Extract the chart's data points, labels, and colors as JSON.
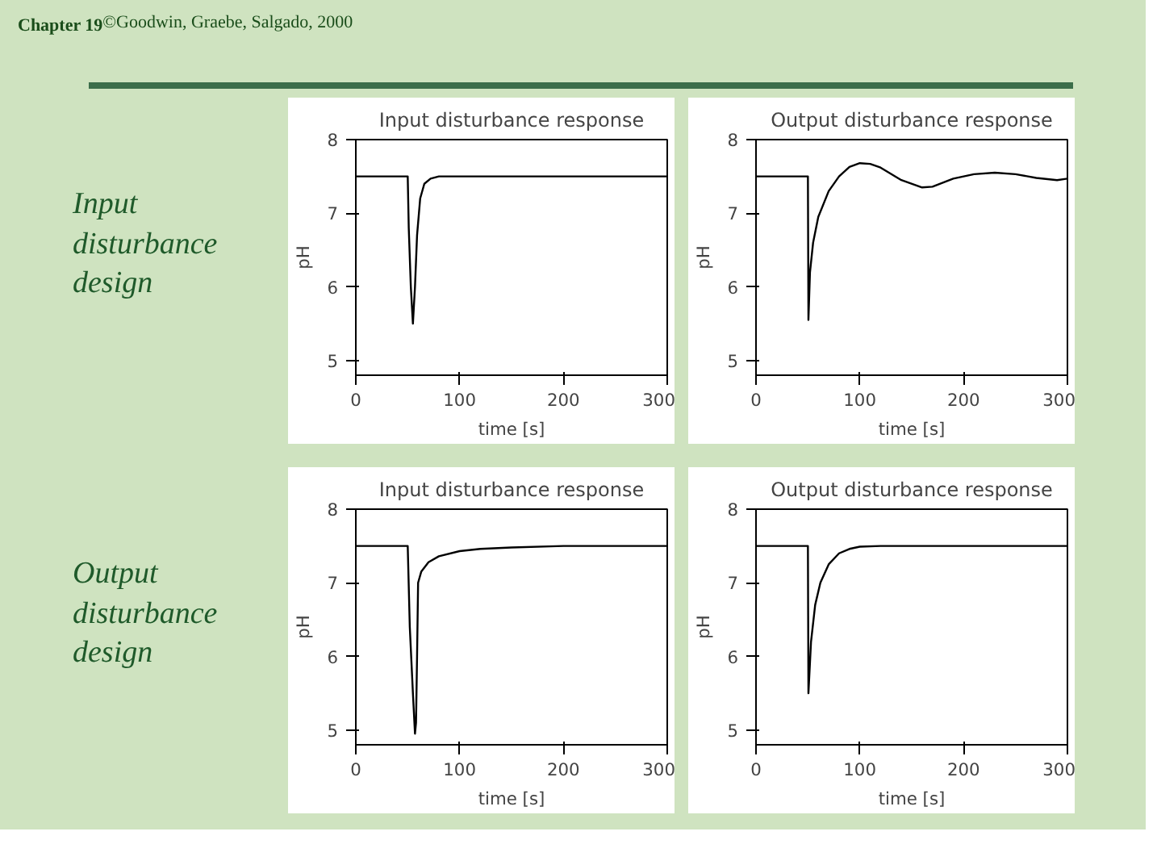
{
  "chart_data": [
    {
      "type": "line",
      "title": "Input disturbance response",
      "xlabel": "time [s]",
      "ylabel": "pH",
      "xlim": [
        0,
        300
      ],
      "xticks": [
        0,
        100,
        200,
        300
      ],
      "ylim": [
        4.8,
        8
      ],
      "yticks": [
        5,
        6,
        7,
        8
      ],
      "annotations": [
        "Chapter 19",
        "©Goodwin, Graebe, Salgado, 2000",
        "Input disturbance design"
      ],
      "series": [
        {
          "color": "#000000",
          "x": [
            0,
            50,
            51,
            53,
            55,
            57,
            59,
            62,
            66,
            72,
            80,
            300
          ],
          "values": [
            7.5,
            7.5,
            6.8,
            6.0,
            5.5,
            6.0,
            6.7,
            7.2,
            7.4,
            7.47,
            7.5,
            7.5
          ]
        }
      ]
    },
    {
      "type": "line",
      "title": "Output disturbance response",
      "xlabel": "time [s]",
      "ylabel": "pH",
      "xlim": [
        0,
        300
      ],
      "xticks": [
        0,
        100,
        200,
        300
      ],
      "ylim": [
        4.8,
        8
      ],
      "yticks": [
        5,
        6,
        7,
        8
      ],
      "series": [
        {
          "color": "#000000",
          "x": [
            0,
            50,
            50.5,
            52,
            55,
            60,
            70,
            80,
            90,
            100,
            110,
            120,
            140,
            160,
            170,
            190,
            210,
            230,
            250,
            270,
            290,
            300
          ],
          "values": [
            7.5,
            7.5,
            5.55,
            6.2,
            6.6,
            6.95,
            7.3,
            7.5,
            7.63,
            7.68,
            7.67,
            7.62,
            7.45,
            7.35,
            7.36,
            7.47,
            7.53,
            7.55,
            7.53,
            7.48,
            7.45,
            7.47
          ]
        }
      ]
    },
    {
      "type": "line",
      "title": "Input disturbance response",
      "xlabel": "time [s]",
      "ylabel": "pH",
      "xlim": [
        0,
        300
      ],
      "xticks": [
        0,
        100,
        200,
        300
      ],
      "ylim": [
        4.8,
        8
      ],
      "yticks": [
        5,
        6,
        7,
        8
      ],
      "annotations": [
        "Output disturbance design"
      ],
      "series": [
        {
          "color": "#000000",
          "x": [
            0,
            50,
            52,
            55,
            57,
            58,
            59,
            60,
            63,
            70,
            80,
            100,
            120,
            150,
            200,
            300
          ],
          "values": [
            7.5,
            7.5,
            6.4,
            5.5,
            4.95,
            5.1,
            6.0,
            7.0,
            7.15,
            7.28,
            7.36,
            7.43,
            7.46,
            7.48,
            7.5,
            7.5
          ]
        }
      ]
    },
    {
      "type": "line",
      "title": "Output disturbance response",
      "xlabel": "time [s]",
      "ylabel": "pH",
      "xlim": [
        0,
        300
      ],
      "xticks": [
        0,
        100,
        200,
        300
      ],
      "ylim": [
        4.8,
        8
      ],
      "yticks": [
        5,
        6,
        7,
        8
      ],
      "series": [
        {
          "color": "#000000",
          "x": [
            0,
            50,
            50.5,
            53,
            57,
            62,
            70,
            80,
            90,
            100,
            120,
            300
          ],
          "values": [
            7.5,
            7.5,
            5.5,
            6.2,
            6.7,
            7.0,
            7.25,
            7.4,
            7.46,
            7.49,
            7.5,
            7.5
          ]
        }
      ]
    }
  ]
}
